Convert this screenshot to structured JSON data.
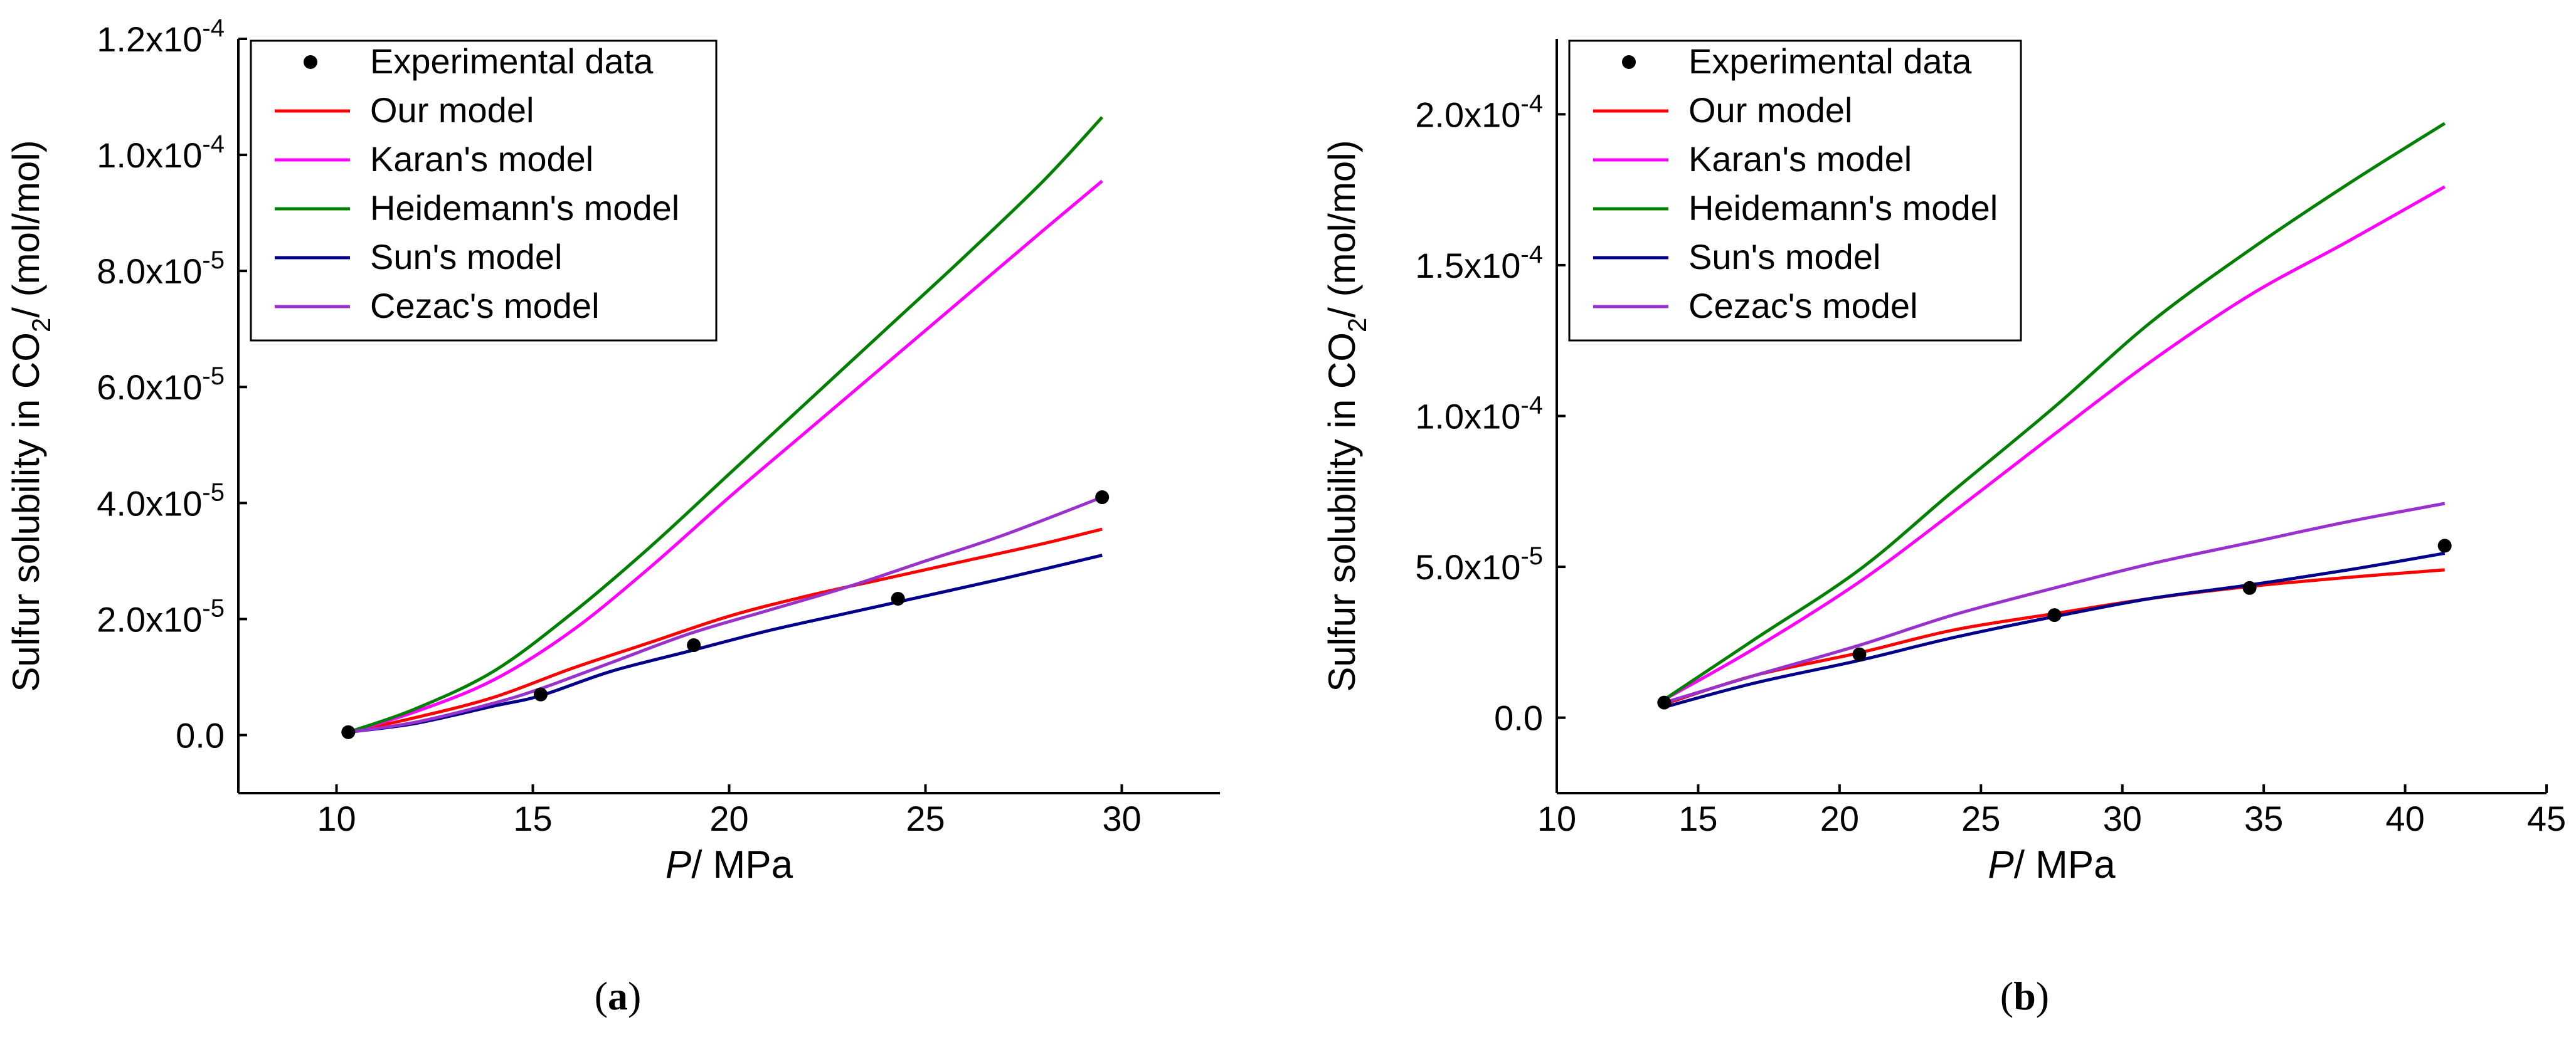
{
  "chart_data": [
    {
      "id": "a",
      "type": "line",
      "panel_label": "(a)",
      "title": "",
      "xlabel_var": "P",
      "xlabel_unit": "/ MPa",
      "ylabel_main": "Sulfur solubility in CO",
      "ylabel_sub": "2",
      "ylabel_unit": "/ (mol/mol)",
      "xlim": [
        7.5,
        32.5
      ],
      "ylim": [
        -1e-05,
        0.00012
      ],
      "x_ticks": [
        10,
        15,
        20,
        25,
        30
      ],
      "y_ticks": [
        {
          "value": 0,
          "mantissa": "0.0",
          "exp": ""
        },
        {
          "value": 2e-05,
          "mantissa": "2.0x10",
          "exp": "-5"
        },
        {
          "value": 4e-05,
          "mantissa": "4.0x10",
          "exp": "-5"
        },
        {
          "value": 6e-05,
          "mantissa": "6.0x10",
          "exp": "-5"
        },
        {
          "value": 8e-05,
          "mantissa": "8.0x10",
          "exp": "-5"
        },
        {
          "value": 0.0001,
          "mantissa": "1.0x10",
          "exp": "-4"
        },
        {
          "value": 0.00012,
          "mantissa": "1.2x10",
          "exp": "-4"
        }
      ],
      "legend_position": "top-left",
      "experimental": {
        "name": "Experimental data",
        "color": "#000000",
        "x": [
          10.3,
          15.2,
          19.1,
          24.3,
          29.5
        ],
        "y": [
          5e-07,
          7e-06,
          1.55e-05,
          2.35e-05,
          4.1e-05
        ]
      },
      "series": [
        {
          "name": "Our model",
          "color": "#ff0000",
          "x": [
            10.3,
            12,
            14,
            16,
            18,
            20,
            22,
            24,
            26,
            28,
            29.5
          ],
          "y": [
            5e-07,
            3e-06,
            6.5e-06,
            1.15e-05,
            1.6e-05,
            2.05e-05,
            2.4e-05,
            2.7e-05,
            3e-05,
            3.3e-05,
            3.55e-05
          ]
        },
        {
          "name": "Karan's model",
          "color": "#ff00ff",
          "x": [
            10.3,
            12,
            14,
            16,
            18,
            20,
            22,
            24,
            26,
            28,
            29.5
          ],
          "y": [
            5e-07,
            4e-06,
            9.5e-06,
            1.8e-05,
            2.9e-05,
            4.1e-05,
            5.25e-05,
            6.4e-05,
            7.55e-05,
            8.7e-05,
            9.55e-05
          ]
        },
        {
          "name": "Heidemann's model",
          "color": "#008000",
          "x": [
            10.3,
            12,
            14,
            16,
            18,
            20,
            22,
            24,
            26,
            28,
            29.5
          ],
          "y": [
            5e-07,
            4.5e-06,
            1.1e-05,
            2.1e-05,
            3.25e-05,
            4.5e-05,
            5.75e-05,
            7e-05,
            8.25e-05,
            9.55e-05,
            0.0001065
          ]
        },
        {
          "name": "Sun's model",
          "color": "#00008b",
          "x": [
            10.3,
            12,
            14,
            15.2,
            17,
            19,
            21,
            23,
            25,
            27,
            29.5
          ],
          "y": [
            5e-07,
            2e-06,
            5e-06,
            6.8e-06,
            1.1e-05,
            1.45e-05,
            1.8e-05,
            2.1e-05,
            2.4e-05,
            2.7e-05,
            3.1e-05
          ]
        },
        {
          "name": "Cezac's model",
          "color": "#9932cc",
          "x": [
            10.3,
            12,
            14,
            15.2,
            17,
            19,
            21,
            23,
            25,
            27,
            29.5
          ],
          "y": [
            5e-07,
            2.2e-06,
            5.5e-06,
            8e-06,
            1.25e-05,
            1.75e-05,
            2.15e-05,
            2.55e-05,
            3e-05,
            3.45e-05,
            4.1e-05
          ]
        }
      ]
    },
    {
      "id": "b",
      "type": "line",
      "panel_label": "(b)",
      "title": "",
      "xlabel_var": "P",
      "xlabel_unit": "/ MPa",
      "ylabel_main": "Sulfur solubility in CO",
      "ylabel_sub": "2",
      "ylabel_unit": "/ (mol/mol)",
      "xlim": [
        10,
        45
      ],
      "ylim": [
        -2.5e-05,
        0.000225
      ],
      "x_ticks": [
        10,
        15,
        20,
        25,
        30,
        35,
        40,
        45
      ],
      "y_ticks": [
        {
          "value": 0,
          "mantissa": "0.0",
          "exp": ""
        },
        {
          "value": 5e-05,
          "mantissa": "5.0x10",
          "exp": "-5"
        },
        {
          "value": 0.0001,
          "mantissa": "1.0x10",
          "exp": "-4"
        },
        {
          "value": 0.00015,
          "mantissa": "1.5x10",
          "exp": "-4"
        },
        {
          "value": 0.0002,
          "mantissa": "2.0x10",
          "exp": "-4"
        }
      ],
      "legend_position": "top-left",
      "experimental": {
        "name": "Experimental data",
        "color": "#000000",
        "x": [
          13.8,
          20.7,
          27.6,
          34.5,
          41.4
        ],
        "y": [
          5e-06,
          2.1e-05,
          3.4e-05,
          4.3e-05,
          5.7e-05
        ]
      },
      "series": [
        {
          "name": "Our model",
          "color": "#ff0000",
          "x": [
            13.8,
            17,
            20.7,
            24,
            27.6,
            31,
            34.5,
            38,
            41.4
          ],
          "y": [
            4.5e-06,
            1.4e-05,
            2.15e-05,
            2.9e-05,
            3.45e-05,
            3.95e-05,
            4.35e-05,
            4.65e-05,
            4.9e-05
          ]
        },
        {
          "name": "Karan's model",
          "color": "#ff00ff",
          "x": [
            13.8,
            17,
            20.7,
            24,
            27.6,
            31,
            34.5,
            38,
            41.4
          ],
          "y": [
            6e-06,
            2.3e-05,
            4.5e-05,
            6.8e-05,
            9.4e-05,
            0.000118,
            0.00014,
            0.000158,
            0.000176
          ]
        },
        {
          "name": "Heidemann's model",
          "color": "#008000",
          "x": [
            13.8,
            17,
            20.7,
            24,
            27.6,
            31,
            34.5,
            38,
            41.4
          ],
          "y": [
            6e-06,
            2.6e-05,
            4.9e-05,
            7.5e-05,
            0.000103,
            0.000131,
            0.000155,
            0.000177,
            0.000197
          ]
        },
        {
          "name": "Sun's model",
          "color": "#00008b",
          "x": [
            13.8,
            17,
            20.7,
            24,
            27.6,
            31,
            34.5,
            38,
            41.4
          ],
          "y": [
            3.5e-06,
            1.15e-05,
            1.9e-05,
            2.65e-05,
            3.35e-05,
            3.95e-05,
            4.4e-05,
            4.9e-05,
            5.45e-05
          ]
        },
        {
          "name": "Cezac's model",
          "color": "#9932cc",
          "x": [
            13.8,
            17,
            20.7,
            24,
            27.6,
            31,
            34.5,
            38,
            41.4
          ],
          "y": [
            5e-06,
            1.4e-05,
            2.4e-05,
            3.4e-05,
            4.3e-05,
            5.1e-05,
            5.8e-05,
            6.5e-05,
            7.1e-05
          ]
        }
      ]
    }
  ]
}
